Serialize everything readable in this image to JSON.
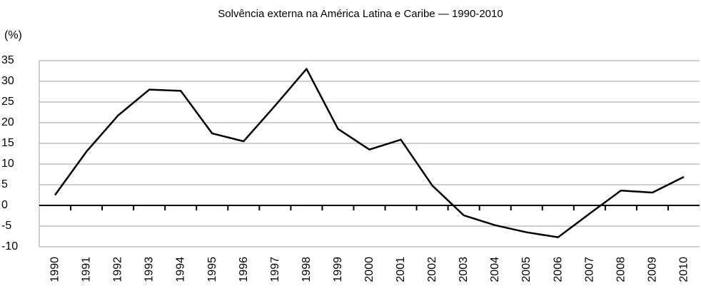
{
  "chart_data": {
    "type": "line",
    "title": "Solvência externa na América Latina e Caribe — 1990-2010",
    "y_label": "(%)",
    "categories": [
      "1990",
      "1991",
      "1992",
      "1993",
      "1994",
      "1995",
      "1996",
      "1997",
      "1998",
      "1999",
      "2000",
      "2001",
      "2002",
      "2003",
      "2004",
      "2005",
      "2006",
      "2007",
      "2008",
      "2009",
      "2010"
    ],
    "series": [
      {
        "name": "Solvência externa",
        "color": "#000000",
        "values": [
          2.5,
          13,
          21.7,
          28,
          27.7,
          17.4,
          15.5,
          24.1,
          33,
          18.5,
          13.5,
          15.9,
          4.8,
          -2.4,
          -4.8,
          -6.5,
          -7.7,
          -2,
          3.6,
          3.1,
          6.9
        ]
      }
    ],
    "ylim": [
      -10,
      35
    ],
    "yticks": [
      -10,
      -5,
      0,
      5,
      10,
      15,
      20,
      25,
      30,
      35
    ],
    "grid": true
  }
}
